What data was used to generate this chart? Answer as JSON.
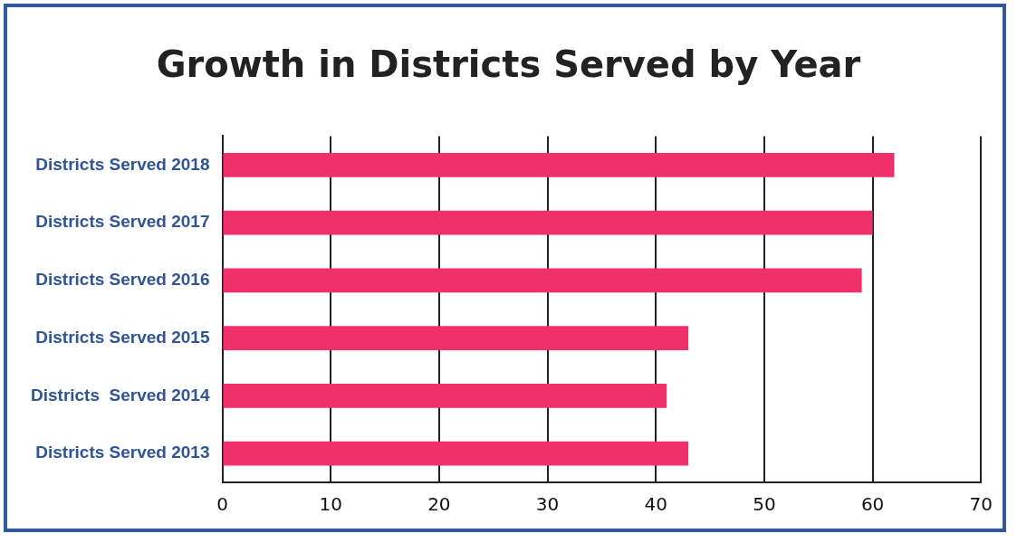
{
  "chart_data": {
    "type": "bar",
    "orientation": "horizontal",
    "title": "Growth in Districts Served by Year",
    "categories": [
      "Districts Served 2018",
      "Districts Served 2017",
      "Districts Served 2016",
      "Districts Served 2015",
      "Districts  Served 2014",
      "Districts Served 2013"
    ],
    "values": [
      62,
      60,
      59,
      43,
      41,
      43
    ],
    "color": "#f0306a",
    "xlim": [
      0,
      70
    ],
    "xticks": [
      0,
      10,
      20,
      30,
      40,
      50,
      60,
      70
    ],
    "grid": "x"
  }
}
